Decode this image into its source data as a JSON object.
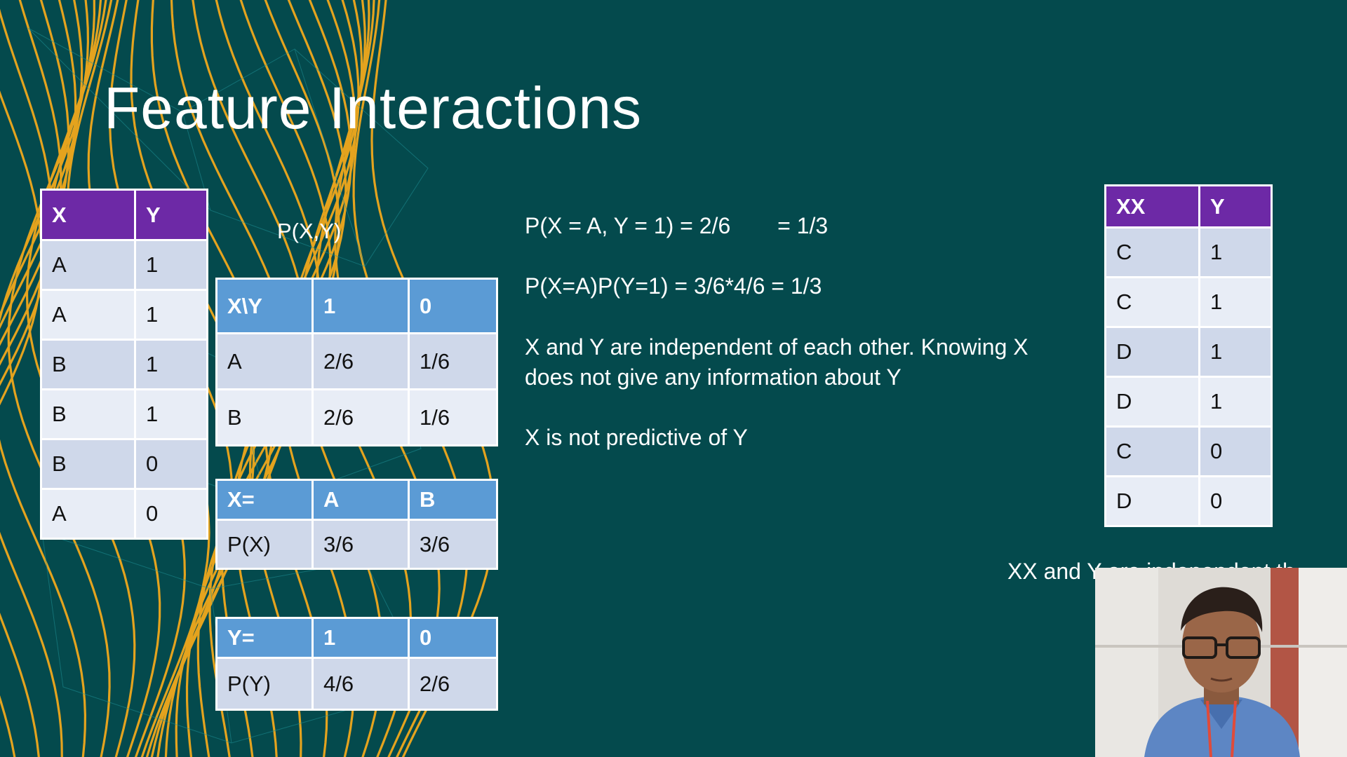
{
  "slide": {
    "title": "Feature Interactions",
    "pxy_label": "P(X,Y)",
    "data_table": {
      "headers": [
        "X",
        "Y"
      ],
      "rows": [
        [
          "A",
          "1"
        ],
        [
          "A",
          "1"
        ],
        [
          "B",
          "1"
        ],
        [
          "B",
          "1"
        ],
        [
          "B",
          "0"
        ],
        [
          "A",
          "0"
        ]
      ]
    },
    "joint_table": {
      "headers": [
        "X\\Y",
        "1",
        "0"
      ],
      "rows": [
        [
          "A",
          "2/6",
          "1/6"
        ],
        [
          "B",
          "2/6",
          "1/6"
        ]
      ]
    },
    "px_table": {
      "headers": [
        "X=",
        "A",
        "B"
      ],
      "rows": [
        [
          "P(X)",
          "3/6",
          "3/6"
        ]
      ]
    },
    "py_table": {
      "headers": [
        "Y=",
        "1",
        "0"
      ],
      "rows": [
        [
          "P(Y)",
          "4/6",
          "2/6"
        ]
      ]
    },
    "xx_table": {
      "headers": [
        "XX",
        "Y"
      ],
      "rows": [
        [
          "C",
          "1"
        ],
        [
          "C",
          "1"
        ],
        [
          "D",
          "1"
        ],
        [
          "D",
          "1"
        ],
        [
          "C",
          "0"
        ],
        [
          "D",
          "0"
        ]
      ]
    },
    "lines": {
      "joint_prob": "P(X = A, Y = 1) = 2/6",
      "joint_prob_result": "= 1/3",
      "product_prob": "P(X=A)P(Y=1) = 3/6*4/6 = 1/3",
      "independence_1": "X and Y are independent of each other. Knowing X",
      "independence_2": "does not give any information about Y",
      "not_predictive": "X is not predictive of Y",
      "xx_partial": "XX and Y are independent th"
    }
  },
  "colors": {
    "background": "#044a4d",
    "accent_lines": "#f0a81c",
    "purple_header": "#6d29a6",
    "blue_header": "#5b9bd5"
  }
}
